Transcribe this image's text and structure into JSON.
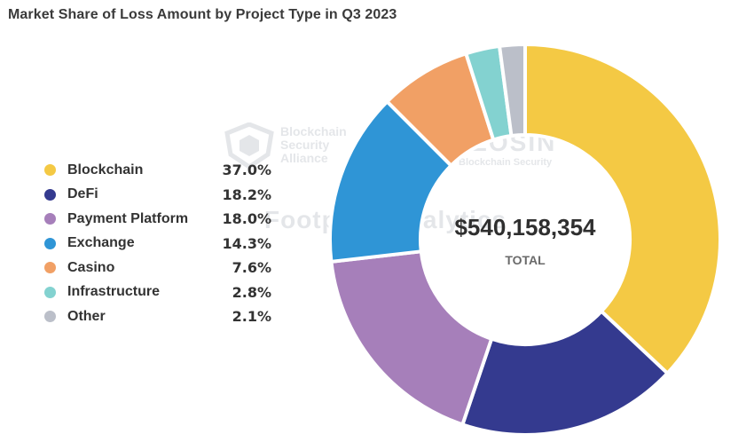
{
  "chart_data": {
    "type": "pie",
    "title": "Market Share of Loss Amount by Project Type in Q3 2023",
    "donut": true,
    "center_value": "$540,158,354",
    "center_label": "TOTAL",
    "legend_position": "left",
    "slices": [
      {
        "label": "Blockchain",
        "value": 37.0,
        "display": "37.0%",
        "color": "#F4C944"
      },
      {
        "label": "DeFi",
        "value": 18.2,
        "display": "18.2%",
        "color": "#343A8F"
      },
      {
        "label": "Payment Platform",
        "value": 18.0,
        "display": "18.0%",
        "color": "#A67FBA"
      },
      {
        "label": "Exchange",
        "value": 14.3,
        "display": "14.3%",
        "color": "#2F95D6"
      },
      {
        "label": "Casino",
        "value": 7.6,
        "display": "7.6%",
        "color": "#F1A065"
      },
      {
        "label": "Infrastructure",
        "value": 2.8,
        "display": "2.8%",
        "color": "#83D2D0"
      },
      {
        "label": "Other",
        "value": 2.1,
        "display": "2.1%",
        "color": "#BBBFC9"
      }
    ]
  },
  "watermarks": {
    "bsa": "Blockchain Security Alliance",
    "beosin": "BEOSIN",
    "beosin_sub": "Blockchain Security",
    "footprint": "Footprint Analytics"
  }
}
